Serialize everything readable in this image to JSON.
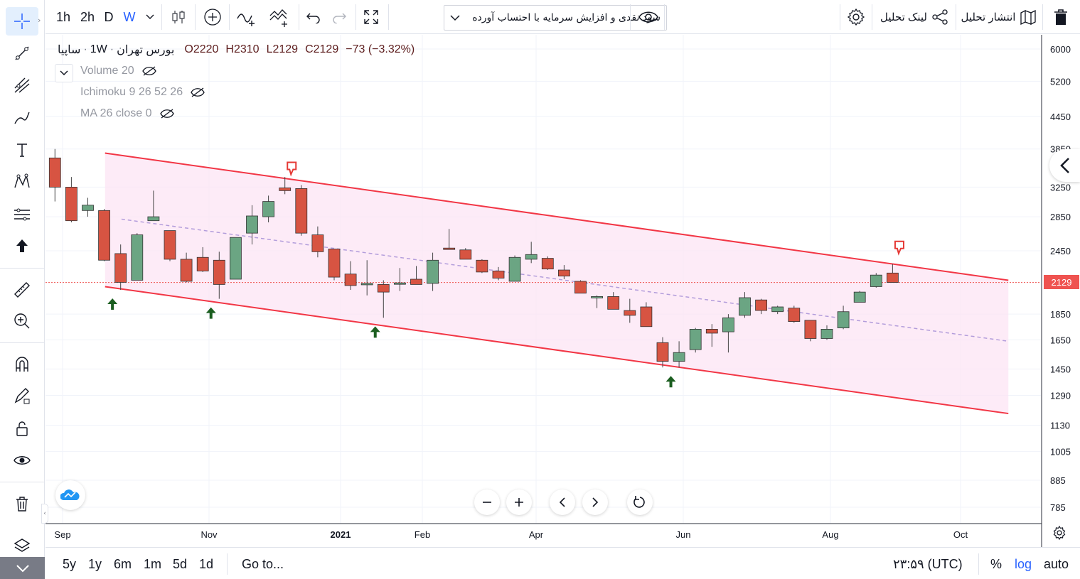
{
  "toolbar": {
    "intervals": [
      "1h",
      "2h",
      "D",
      "W"
    ],
    "active_interval": "W",
    "indicator_select": "سود نقدی و افزایش سرمایه با احتساب آورده",
    "publish_label": "انتشار تحلیل",
    "link_label": "لینک تحلیل"
  },
  "legend": {
    "symbol": "ساپیا",
    "interval": "1W",
    "exchange": "بورس تهران",
    "open": "O2220",
    "high": "H2310",
    "low": "L2129",
    "close": "C2129",
    "change": "−73 (−3.32%)",
    "indicators": [
      "Volume 20",
      "Ichimoku 9 26 52 26",
      "MA 26 close 0"
    ]
  },
  "colors": {
    "up": "#6ba583",
    "down": "#d75442",
    "channel_line": "#f23645",
    "channel_fill": "#fce4f4",
    "ma_line": "#b39ddb",
    "price_line": "#ef5350",
    "accent": "#2962ff"
  },
  "price_scale": [
    "6000",
    "5200",
    "4450",
    "3850",
    "3250",
    "2850",
    "2450",
    "2129",
    "1850",
    "1650",
    "1450",
    "1290",
    "1130",
    "1005",
    "885",
    "785"
  ],
  "last_price": "2129",
  "time_scale": [
    "Sep",
    "Nov",
    "2021",
    "Feb",
    "Apr",
    "Jun",
    "Aug",
    "Oct"
  ],
  "bottom": {
    "ranges": [
      "5y",
      "1y",
      "6m",
      "1m",
      "5d",
      "1d"
    ],
    "goto": "Go to...",
    "clock": "۲۳:۵۹ (UTC)",
    "percent": "%",
    "log": "log",
    "auto": "auto"
  },
  "chart_data": {
    "type": "candlestick",
    "symbol": "ساپیا",
    "interval": "1W",
    "yscale": "log",
    "ylim": [
      700,
      6500
    ],
    "candles": [
      {
        "o": 3700,
        "h": 3850,
        "l": 3050,
        "c": 3250
      },
      {
        "o": 3250,
        "h": 3400,
        "l": 2780,
        "c": 2800
      },
      {
        "o": 2930,
        "h": 3100,
        "l": 2850,
        "c": 3000
      },
      {
        "o": 2930,
        "h": 2950,
        "l": 2340,
        "c": 2350
      },
      {
        "o": 2420,
        "h": 2520,
        "l": 2060,
        "c": 2130
      },
      {
        "o": 2150,
        "h": 2650,
        "l": 2150,
        "c": 2630
      },
      {
        "o": 2800,
        "h": 3200,
        "l": 2800,
        "c": 2850
      },
      {
        "o": 2680,
        "h": 2680,
        "l": 2340,
        "c": 2360
      },
      {
        "o": 2360,
        "h": 2430,
        "l": 2130,
        "c": 2140
      },
      {
        "o": 2380,
        "h": 2490,
        "l": 2230,
        "c": 2240
      },
      {
        "o": 2350,
        "h": 2440,
        "l": 1980,
        "c": 2110
      },
      {
        "o": 2160,
        "h": 2600,
        "l": 2160,
        "c": 2600
      },
      {
        "o": 2650,
        "h": 3000,
        "l": 2520,
        "c": 2860
      },
      {
        "o": 2850,
        "h": 3130,
        "l": 2780,
        "c": 3050
      },
      {
        "o": 3240,
        "h": 3400,
        "l": 3150,
        "c": 3200
      },
      {
        "o": 3230,
        "h": 3280,
        "l": 2620,
        "c": 2650
      },
      {
        "o": 2630,
        "h": 2730,
        "l": 2380,
        "c": 2440
      },
      {
        "o": 2470,
        "h": 2470,
        "l": 2150,
        "c": 2180
      },
      {
        "o": 2210,
        "h": 2340,
        "l": 2060,
        "c": 2100
      },
      {
        "o": 2110,
        "h": 2350,
        "l": 2010,
        "c": 2120
      },
      {
        "o": 2110,
        "h": 2150,
        "l": 1820,
        "c": 2040
      },
      {
        "o": 2120,
        "h": 2270,
        "l": 2050,
        "c": 2125
      },
      {
        "o": 2160,
        "h": 2290,
        "l": 2120,
        "c": 2110
      },
      {
        "o": 2120,
        "h": 2430,
        "l": 2050,
        "c": 2350
      },
      {
        "o": 2480,
        "h": 2700,
        "l": 2470,
        "c": 2470
      },
      {
        "o": 2460,
        "h": 2480,
        "l": 2360,
        "c": 2360
      },
      {
        "o": 2350,
        "h": 2360,
        "l": 2220,
        "c": 2230
      },
      {
        "o": 2240,
        "h": 2280,
        "l": 2150,
        "c": 2170
      },
      {
        "o": 2140,
        "h": 2400,
        "l": 2140,
        "c": 2380
      },
      {
        "o": 2360,
        "h": 2550,
        "l": 2320,
        "c": 2410
      },
      {
        "o": 2370,
        "h": 2390,
        "l": 2250,
        "c": 2260
      },
      {
        "o": 2250,
        "h": 2300,
        "l": 2160,
        "c": 2190
      },
      {
        "o": 2140,
        "h": 2150,
        "l": 2030,
        "c": 2030
      },
      {
        "o": 1990,
        "h": 2010,
        "l": 1900,
        "c": 2000
      },
      {
        "o": 2000,
        "h": 2040,
        "l": 1890,
        "c": 1890
      },
      {
        "o": 1880,
        "h": 1980,
        "l": 1780,
        "c": 1840
      },
      {
        "o": 1910,
        "h": 1950,
        "l": 1750,
        "c": 1750
      },
      {
        "o": 1630,
        "h": 1670,
        "l": 1460,
        "c": 1500
      },
      {
        "o": 1500,
        "h": 1640,
        "l": 1460,
        "c": 1560
      },
      {
        "o": 1580,
        "h": 1740,
        "l": 1560,
        "c": 1730
      },
      {
        "o": 1730,
        "h": 1770,
        "l": 1600,
        "c": 1700
      },
      {
        "o": 1710,
        "h": 1850,
        "l": 1560,
        "c": 1820
      },
      {
        "o": 1840,
        "h": 2040,
        "l": 1820,
        "c": 1990
      },
      {
        "o": 1970,
        "h": 1980,
        "l": 1850,
        "c": 1880
      },
      {
        "o": 1870,
        "h": 1920,
        "l": 1850,
        "c": 1910
      },
      {
        "o": 1900,
        "h": 1920,
        "l": 1780,
        "c": 1790
      },
      {
        "o": 1800,
        "h": 1800,
        "l": 1640,
        "c": 1660
      },
      {
        "o": 1660,
        "h": 1760,
        "l": 1650,
        "c": 1730
      },
      {
        "o": 1740,
        "h": 1920,
        "l": 1730,
        "c": 1870
      },
      {
        "o": 1950,
        "h": 2050,
        "l": 1950,
        "c": 2040
      },
      {
        "o": 2090,
        "h": 2220,
        "l": 2080,
        "c": 2200
      },
      {
        "o": 2220,
        "h": 2310,
        "l": 2129,
        "c": 2129
      }
    ],
    "channel": {
      "upper": [
        {
          "week": 2.5,
          "price": 3780
        },
        {
          "week": 57.5,
          "price": 2150
        }
      ],
      "lower": [
        {
          "week": 2.5,
          "price": 2090
        },
        {
          "week": 57.5,
          "price": 1190
        }
      ]
    },
    "moving_average": [
      {
        "week": 3.5,
        "price": 2820
      },
      {
        "week": 57.5,
        "price": 1640
      }
    ],
    "markers": [
      {
        "type": "buy-arrow",
        "week": 3.5
      },
      {
        "type": "buy-arrow",
        "week": 9.5
      },
      {
        "type": "buy-arrow",
        "week": 19.5
      },
      {
        "type": "sell-flag",
        "week": 14.5
      },
      {
        "type": "buy-arrow",
        "week": 37.5
      },
      {
        "type": "sell-flag",
        "week": 51.5
      }
    ],
    "last_price_line": 2129,
    "x_ticks": [
      "Sep",
      "Nov",
      "2021",
      "Feb",
      "Apr",
      "Jun",
      "Aug",
      "Oct"
    ]
  }
}
